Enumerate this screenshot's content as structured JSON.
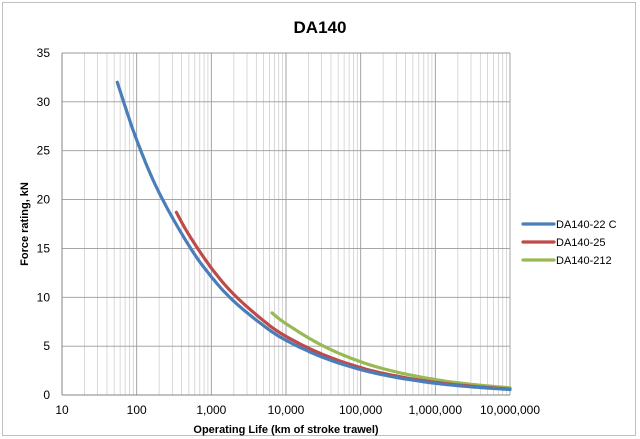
{
  "chart_data": {
    "type": "line",
    "title": "DA140",
    "xlabel": "Operating Life  (km of stroke trawel)",
    "ylabel": "Force rating, kN",
    "x_scale": "log",
    "xlim": [
      10,
      10000000
    ],
    "ylim": [
      0,
      35
    ],
    "x_ticks": [
      10,
      100,
      1000,
      10000,
      100000,
      1000000,
      10000000
    ],
    "x_tick_labels": [
      "10",
      "100",
      "1,000",
      "10,000",
      "100,000",
      "1,000,000",
      "10,000,000"
    ],
    "y_ticks": [
      0,
      5,
      10,
      15,
      20,
      25,
      30,
      35
    ],
    "y_tick_labels": [
      "0",
      "5",
      "10",
      "15",
      "20",
      "25",
      "30",
      "35"
    ],
    "grid": true,
    "legend_position": "right",
    "series": [
      {
        "name": "DA140-22 C",
        "color": "#4a7ebb",
        "x": [
          55,
          100,
          200,
          500,
          1000,
          2000,
          5000,
          10000,
          30000,
          100000,
          300000,
          1000000,
          3000000,
          10000000
        ],
        "y": [
          32,
          26.1,
          20.7,
          15.3,
          12.1,
          9.6,
          7.1,
          5.6,
          3.9,
          2.6,
          1.8,
          1.2,
          0.84,
          0.56
        ]
      },
      {
        "name": "DA140-25",
        "color": "#be4b48",
        "x": [
          340,
          500,
          1000,
          2000,
          5000,
          10000,
          30000,
          100000,
          300000,
          1000000,
          3000000,
          10000000
        ],
        "y": [
          18.7,
          16.4,
          13.0,
          10.3,
          7.6,
          6.0,
          4.2,
          2.8,
          1.94,
          1.3,
          0.9,
          0.6
        ]
      },
      {
        "name": "DA140-212",
        "color": "#98b954",
        "x": [
          6500,
          10000,
          30000,
          100000,
          300000,
          1000000,
          3000000,
          10000000
        ],
        "y": [
          8.4,
          7.3,
          5.1,
          3.4,
          2.36,
          1.58,
          1.1,
          0.73
        ]
      }
    ]
  }
}
